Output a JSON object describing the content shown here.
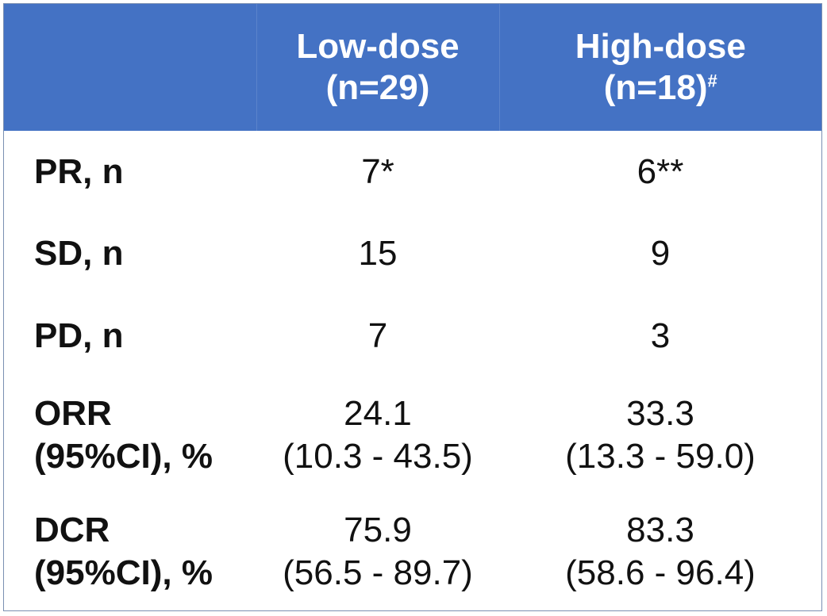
{
  "chart_data": {
    "type": "table",
    "columns": [
      {
        "label_line1": "",
        "label_line2": ""
      },
      {
        "label_line1": "Low-dose",
        "label_line2": "(n=29)",
        "footnote": ""
      },
      {
        "label_line1": "High-dose",
        "label_line2": "(n=18)",
        "footnote": "#"
      }
    ],
    "rows": [
      {
        "label_line1": "PR, n",
        "label_line2": "",
        "low_line1": "7*",
        "low_line2": "",
        "high_line1": "6**",
        "high_line2": ""
      },
      {
        "label_line1": "SD, n",
        "label_line2": "",
        "low_line1": "15",
        "low_line2": "",
        "high_line1": "9",
        "high_line2": ""
      },
      {
        "label_line1": "PD, n",
        "label_line2": "",
        "low_line1": "7",
        "low_line2": "",
        "high_line1": "3",
        "high_line2": ""
      },
      {
        "label_line1": "ORR",
        "label_line2": "(95%CI), %",
        "low_line1": "24.1",
        "low_line2": "(10.3 - 43.5)",
        "high_line1": "33.3",
        "high_line2": "(13.3 - 59.0)"
      },
      {
        "label_line1": "DCR",
        "label_line2": "(95%CI), %",
        "low_line1": "75.9",
        "low_line2": "(56.5 - 89.7)",
        "high_line1": "83.3",
        "high_line2": "(58.6 - 96.4)"
      }
    ]
  },
  "colors": {
    "header_bg": "#4472c4",
    "header_text": "#ffffff",
    "body_text": "#111111",
    "border": "#7a8fb2"
  }
}
